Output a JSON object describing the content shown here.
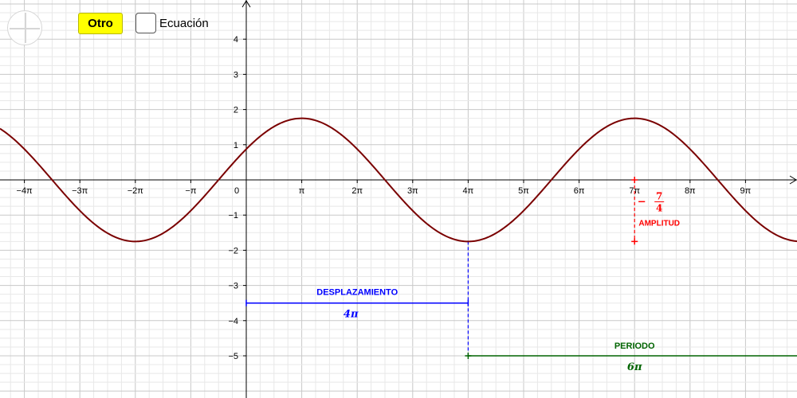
{
  "controls": {
    "reset_icon": "reset-view-icon",
    "otro_label": "Otro",
    "checkbox_label": "Ecuación",
    "checkbox_checked": false
  },
  "colors": {
    "curve": "#7a0000",
    "amplitude": "#ff0000",
    "shift": "#0000ff",
    "period": "#006400",
    "axes": "#000000",
    "grid_major": "#c8c8c8",
    "grid_minor": "#e8e8e8",
    "otro_button": "#ffff00"
  },
  "chart_data": {
    "type": "line",
    "function": "A*sin(x/3) + D",
    "x_range_pi": [
      -4.45,
      9.9
    ],
    "y_range": [
      -6.2,
      5.05
    ],
    "x_ticks": [
      {
        "v": -4,
        "label": "−4π"
      },
      {
        "v": -3,
        "label": "−3π"
      },
      {
        "v": -2,
        "label": "−2π"
      },
      {
        "v": -1,
        "label": "−π"
      },
      {
        "v": 1,
        "label": "π"
      },
      {
        "v": 2,
        "label": "2π"
      },
      {
        "v": 3,
        "label": "3π"
      },
      {
        "v": 4,
        "label": "4π"
      },
      {
        "v": 5,
        "label": "5π"
      },
      {
        "v": 6,
        "label": "6π"
      },
      {
        "v": 7,
        "label": "7π"
      },
      {
        "v": 8,
        "label": "8π"
      },
      {
        "v": 9,
        "label": "9π"
      }
    ],
    "origin_label": "0",
    "y_ticks": [
      {
        "v": 4,
        "label": "4"
      },
      {
        "v": 3,
        "label": "3"
      },
      {
        "v": 2,
        "label": "2"
      },
      {
        "v": 1,
        "label": "1"
      },
      {
        "v": -1,
        "label": "−1"
      },
      {
        "v": -2,
        "label": "−2"
      },
      {
        "v": -3,
        "label": "−3"
      },
      {
        "v": -4,
        "label": "−4"
      },
      {
        "v": -5,
        "label": "−5"
      }
    ],
    "curve_params": {
      "amplitude": 1.75,
      "period_pi": 6,
      "max_at_pi": 1,
      "vertical_shift": 0
    },
    "annotations": {
      "amplitude": {
        "label": "AMPLITUD",
        "value_sign": "−",
        "value_num": "7",
        "value_den": "4",
        "x_pi": 7,
        "y_from": -1.75,
        "y_to": 0
      },
      "shift": {
        "label": "DESPLAZAMIENTO",
        "value": "4π",
        "y": -3.5,
        "x_from_pi": 0,
        "x_to_pi": 4
      },
      "period": {
        "label": "PERIODO",
        "value": "6π",
        "y": -5,
        "x_from_pi": 4,
        "x_to_pi": 10
      },
      "drop_line": {
        "x_pi": 4,
        "y_from": -5,
        "y_to": -1.75
      }
    },
    "grid": true,
    "title": "",
    "xlabel": "",
    "ylabel": ""
  }
}
